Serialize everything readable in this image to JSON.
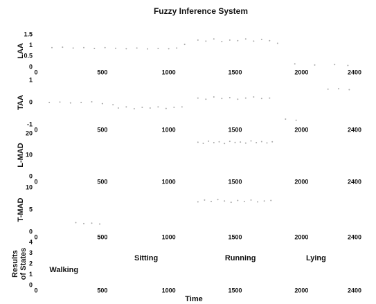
{
  "title": "Fuzzy Inference System",
  "chart_data": [
    {
      "type": "scatter",
      "ylabel": "LAA",
      "xlim": [
        0,
        2400
      ],
      "xticks": [
        0,
        500,
        1000,
        1500,
        2000,
        2400
      ],
      "ylim": [
        0,
        1.5
      ],
      "yticks": [
        0,
        0.5,
        1,
        1.5
      ],
      "color": "#a8a8a8",
      "series": [
        {
          "x": [
            120,
            200,
            280,
            360,
            440,
            520,
            600,
            680,
            760,
            840,
            920,
            1000,
            1060,
            1120,
            1220,
            1280,
            1340,
            1400,
            1460,
            1520,
            1580,
            1640,
            1700,
            1760,
            1820,
            1950,
            2100,
            2250,
            2350
          ],
          "values": [
            0.9,
            0.92,
            0.88,
            0.9,
            0.86,
            0.9,
            0.87,
            0.85,
            0.88,
            0.84,
            0.86,
            0.85,
            0.88,
            1.05,
            1.25,
            1.2,
            1.3,
            1.18,
            1.25,
            1.22,
            1.3,
            1.2,
            1.28,
            1.22,
            1.1,
            0.15,
            0.1,
            0.12,
            0.08
          ]
        }
      ]
    },
    {
      "type": "scatter",
      "ylabel": "TAA",
      "xlim": [
        0,
        2400
      ],
      "xticks": [
        0,
        500,
        1000,
        1500,
        2000,
        2400
      ],
      "ylim": [
        -1,
        1
      ],
      "yticks": [
        -1,
        0,
        1
      ],
      "color": "#a8a8a8",
      "series": [
        {
          "x": [
            100,
            180,
            260,
            340,
            420,
            500,
            580,
            620,
            680,
            740,
            800,
            860,
            920,
            980,
            1040,
            1100,
            1220,
            1280,
            1340,
            1400,
            1460,
            1520,
            1580,
            1640,
            1700,
            1760,
            1880,
            1960,
            2200,
            2280,
            2360
          ],
          "values": [
            0.0,
            0.02,
            -0.02,
            0.0,
            0.03,
            -0.05,
            -0.1,
            -0.25,
            -0.2,
            -0.28,
            -0.22,
            -0.25,
            -0.2,
            -0.27,
            -0.22,
            -0.2,
            0.2,
            0.15,
            0.25,
            0.18,
            0.22,
            0.15,
            0.2,
            0.25,
            0.18,
            0.2,
            -0.75,
            -0.8,
            0.6,
            0.62,
            0.58
          ]
        }
      ]
    },
    {
      "type": "scatter",
      "ylabel": "L-MAD",
      "xlim": [
        0,
        2400
      ],
      "xticks": [
        0,
        500,
        1000,
        1500,
        2000,
        2400
      ],
      "ylim": [
        0,
        20
      ],
      "yticks": [
        0,
        10,
        20
      ],
      "color": "#a8a8a8",
      "series": [
        {
          "x": [
            1220,
            1260,
            1300,
            1340,
            1380,
            1420,
            1460,
            1500,
            1540,
            1580,
            1620,
            1660,
            1700,
            1740,
            1780
          ],
          "values": [
            16,
            15.5,
            16.5,
            15.8,
            16.2,
            15.4,
            16.4,
            15.9,
            16.1,
            15.6,
            16.6,
            15.8,
            16.3,
            15.7,
            16.2
          ]
        }
      ]
    },
    {
      "type": "scatter",
      "ylabel": "T-MAD",
      "xlim": [
        0,
        2400
      ],
      "xticks": [
        0,
        500,
        1000,
        1500,
        2000,
        2400
      ],
      "ylim": [
        0,
        10
      ],
      "yticks": [
        0,
        5,
        10
      ],
      "color": "#a8a8a8",
      "series": [
        {
          "x": [
            300,
            360,
            420,
            480,
            1220,
            1270,
            1320,
            1370,
            1420,
            1470,
            1520,
            1570,
            1620,
            1670,
            1720,
            1770
          ],
          "values": [
            2.1,
            1.9,
            2.0,
            1.8,
            6.8,
            7.2,
            6.9,
            7.3,
            7.0,
            6.7,
            7.1,
            6.9,
            7.2,
            6.8,
            7.0,
            7.1
          ]
        }
      ]
    },
    {
      "type": "annotated",
      "ylabel": [
        "Results",
        "of States"
      ],
      "xlabel": "Time",
      "xlim": [
        0,
        2400
      ],
      "xticks": [
        0,
        500,
        1000,
        1500,
        2000,
        2400
      ],
      "ylim": [
        0,
        4
      ],
      "yticks": [
        0,
        1,
        2,
        3,
        4
      ],
      "annotations": [
        {
          "text": "Walking",
          "x": 210,
          "y": 1.4
        },
        {
          "text": "Sitting",
          "x": 830,
          "y": 2.5
        },
        {
          "text": "Running",
          "x": 1540,
          "y": 2.5
        },
        {
          "text": "Lying",
          "x": 2110,
          "y": 2.5
        }
      ]
    }
  ]
}
